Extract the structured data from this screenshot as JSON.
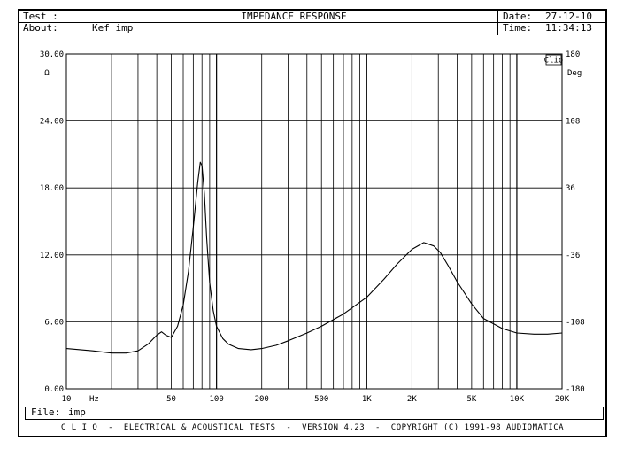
{
  "header": {
    "test_label": "Test :",
    "title": "IMPEDANCE RESPONSE",
    "date_label": "Date:",
    "date_value": "27-12-10",
    "about_label": "About:",
    "about_value": "Kef imp",
    "time_label": "Time:",
    "time_value": "11:34:13"
  },
  "file": {
    "label": "File:",
    "value": "imp"
  },
  "footer": "C L I O  -  ELECTRICAL & ACOUSTICAL TESTS  -  VERSION 4.23  -  COPYRIGHT (C) 1991-98 AUDIOMATICA",
  "chart_data": {
    "type": "line",
    "title": "IMPEDANCE RESPONSE",
    "x_scale": "log",
    "xlim": [
      10,
      20000
    ],
    "x_ticks": [
      {
        "v": 10,
        "label": "10"
      },
      {
        "v": 50,
        "label": "50"
      },
      {
        "v": 100,
        "label": "100"
      },
      {
        "v": 200,
        "label": "200"
      },
      {
        "v": 500,
        "label": "500"
      },
      {
        "v": 1000,
        "label": "1K"
      },
      {
        "v": 2000,
        "label": "2K"
      },
      {
        "v": 5000,
        "label": "5K"
      },
      {
        "v": 10000,
        "label": "10K"
      },
      {
        "v": 20000,
        "label": "20K"
      }
    ],
    "x_unit": "Hz",
    "ylim": [
      0,
      30
    ],
    "y_ticks": [
      "0.00",
      "6.00",
      "12.00",
      "18.00",
      "24.00",
      "30.00"
    ],
    "y_unit": "Ω",
    "y2lim": [
      -180,
      180
    ],
    "y2_ticks": [
      "-180",
      "-108",
      "-36",
      "36",
      "108",
      "180"
    ],
    "y2_unit": "Deg",
    "brand": "Clio",
    "grid": true,
    "series": [
      {
        "x": [
          10,
          15,
          20,
          25,
          30,
          35,
          40,
          43,
          46,
          50,
          55,
          60,
          65,
          70,
          75,
          78,
          80,
          83,
          86,
          90,
          95,
          100,
          110,
          120,
          140,
          170,
          200,
          250,
          300,
          400,
          500,
          700,
          1000,
          1300,
          1600,
          2000,
          2400,
          2800,
          3100,
          3500,
          4000,
          5000,
          6000,
          8000,
          10000,
          13000,
          16000,
          20000
        ],
        "y": [
          3.6,
          3.4,
          3.2,
          3.2,
          3.4,
          4.0,
          4.8,
          5.1,
          4.8,
          4.6,
          5.6,
          7.5,
          10.5,
          14.5,
          18.5,
          20.3,
          20.0,
          17.5,
          13.5,
          9.5,
          7.0,
          5.6,
          4.5,
          4.0,
          3.6,
          3.5,
          3.6,
          3.9,
          4.3,
          5.0,
          5.6,
          6.7,
          8.2,
          9.8,
          11.2,
          12.5,
          13.1,
          12.8,
          12.2,
          11.0,
          9.6,
          7.6,
          6.3,
          5.4,
          5.0,
          4.9,
          4.9,
          5.0
        ]
      }
    ]
  }
}
